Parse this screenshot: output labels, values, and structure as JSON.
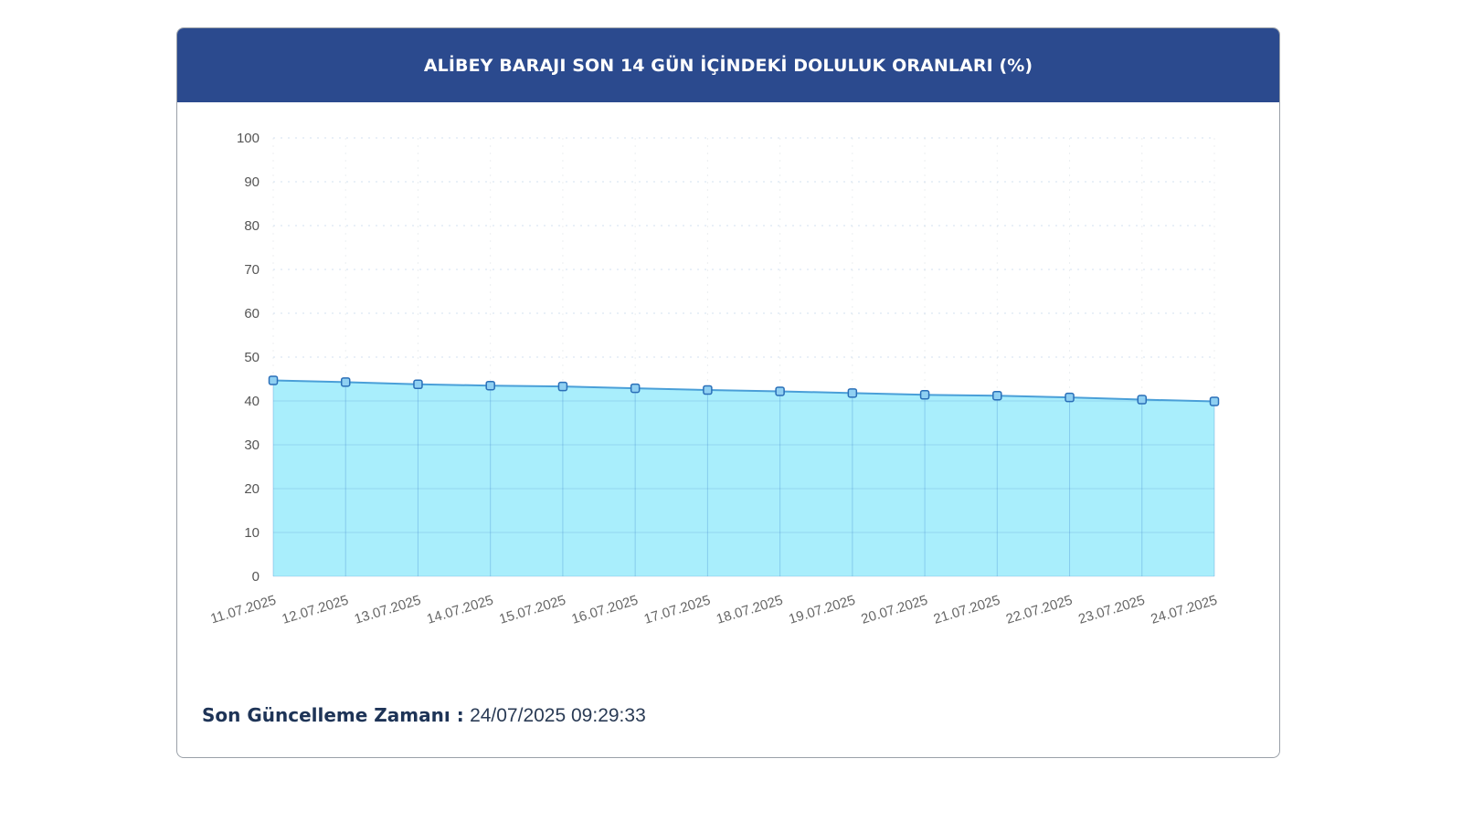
{
  "title": "ALİBEY BARAJI SON 14 GÜN İÇİNDEKİ DOLULUK ORANLARI (%)",
  "footer": {
    "label": "Son Güncelleme Zamanı :",
    "value": "24/07/2025 09:29:33"
  },
  "colors": {
    "header_bg": "#2b4a8e",
    "area_fill": "#a9eefc",
    "line": "#4a9fd8",
    "marker_fill": "#8fd0f2",
    "marker_stroke": "#2a6fb8"
  },
  "chart_data": {
    "type": "area",
    "categories": [
      "11.07.2025",
      "12.07.2025",
      "13.07.2025",
      "14.07.2025",
      "15.07.2025",
      "16.07.2025",
      "17.07.2025",
      "18.07.2025",
      "19.07.2025",
      "20.07.2025",
      "21.07.2025",
      "22.07.2025",
      "23.07.2025",
      "24.07.2025"
    ],
    "values": [
      44.7,
      44.3,
      43.8,
      43.5,
      43.3,
      42.9,
      42.5,
      42.2,
      41.8,
      41.4,
      41.2,
      40.8,
      40.3,
      39.9
    ],
    "ylim": [
      0,
      100
    ],
    "yticks": [
      0,
      10,
      20,
      30,
      40,
      50,
      60,
      70,
      80,
      90,
      100
    ],
    "grid": true,
    "legend": "none"
  }
}
